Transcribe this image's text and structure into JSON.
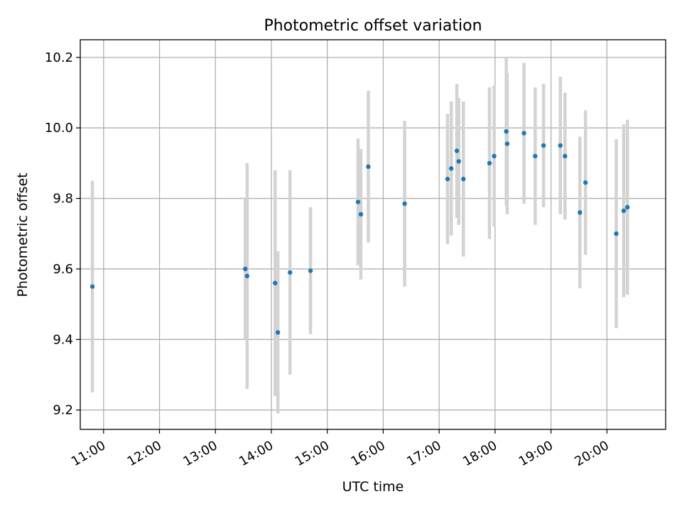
{
  "chart_data": {
    "type": "scatter",
    "title": "Photometric offset variation",
    "xlabel": "UTC time",
    "ylabel": "Photometric offset",
    "grid": true,
    "x_ticks": [
      "11:00",
      "12:00",
      "13:00",
      "14:00",
      "15:00",
      "16:00",
      "17:00",
      "18:00",
      "19:00",
      "20:00"
    ],
    "y_ticks": [
      "9.2",
      "9.4",
      "9.6",
      "9.8",
      "10.0",
      "10.2"
    ],
    "xlim": [
      "10:35",
      "21:03"
    ],
    "ylim": [
      9.145,
      10.25
    ],
    "point_color": "#1f77b4",
    "errorbar_color": "#d3d3d3",
    "points": [
      {
        "x": "10:48",
        "y": 9.55,
        "yerr": 0.3
      },
      {
        "x": "13:32",
        "y": 9.6,
        "yerr": 0.2
      },
      {
        "x": "13:34",
        "y": 9.58,
        "yerr": 0.32
      },
      {
        "x": "14:04",
        "y": 9.56,
        "yerr": 0.32
      },
      {
        "x": "14:07",
        "y": 9.42,
        "yerr": 0.23
      },
      {
        "x": "14:20",
        "y": 9.59,
        "yerr": 0.29
      },
      {
        "x": "14:42",
        "y": 9.595,
        "yerr": 0.18
      },
      {
        "x": "15:33",
        "y": 9.79,
        "yerr": 0.18
      },
      {
        "x": "15:36",
        "y": 9.755,
        "yerr": 0.185
      },
      {
        "x": "15:44",
        "y": 9.89,
        "yerr": 0.215
      },
      {
        "x": "16:23",
        "y": 9.785,
        "yerr": 0.235
      },
      {
        "x": "17:09",
        "y": 9.855,
        "yerr": 0.185
      },
      {
        "x": "17:13",
        "y": 9.885,
        "yerr": 0.19
      },
      {
        "x": "17:19",
        "y": 9.935,
        "yerr": 0.19
      },
      {
        "x": "17:21",
        "y": 9.905,
        "yerr": 0.18
      },
      {
        "x": "17:26",
        "y": 9.855,
        "yerr": 0.22
      },
      {
        "x": "17:54",
        "y": 9.9,
        "yerr": 0.215
      },
      {
        "x": "17:59",
        "y": 9.92,
        "yerr": 0.2
      },
      {
        "x": "18:12",
        "y": 9.99,
        "yerr": 0.21
      },
      {
        "x": "18:13",
        "y": 9.955,
        "yerr": 0.2
      },
      {
        "x": "18:31",
        "y": 9.985,
        "yerr": 0.2
      },
      {
        "x": "18:43",
        "y": 9.92,
        "yerr": 0.195
      },
      {
        "x": "18:52",
        "y": 9.95,
        "yerr": 0.175
      },
      {
        "x": "19:10",
        "y": 9.95,
        "yerr": 0.195
      },
      {
        "x": "19:15",
        "y": 9.92,
        "yerr": 0.18
      },
      {
        "x": "19:31",
        "y": 9.76,
        "yerr": 0.215
      },
      {
        "x": "19:37",
        "y": 9.845,
        "yerr": 0.205
      },
      {
        "x": "20:10",
        "y": 9.7,
        "yerr": 0.268
      },
      {
        "x": "20:18",
        "y": 9.765,
        "yerr": 0.245
      },
      {
        "x": "20:22",
        "y": 9.775,
        "yerr": 0.248
      }
    ]
  }
}
